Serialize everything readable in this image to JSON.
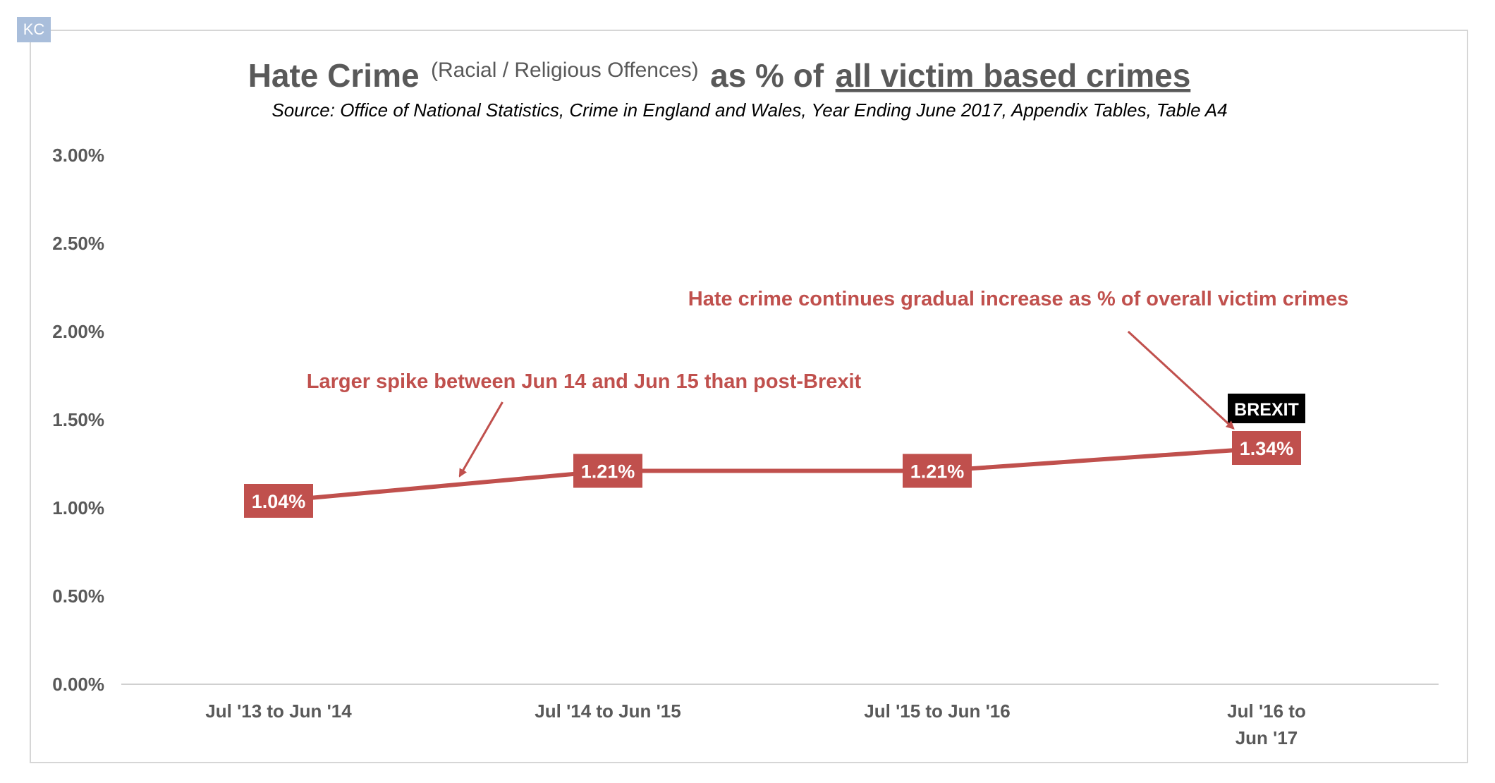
{
  "watermark": "KC",
  "chart_data": {
    "type": "line",
    "title_main": "Hate Crime",
    "title_paren": "(Racial / Religious Offences)",
    "title_mid": "as % of",
    "title_underlined": "all victim based crimes",
    "subtitle": "Source: Office of National Statistics, Crime in England and Wales, Year Ending June 2017, Appendix Tables, Table A4",
    "categories": [
      [
        "Jul '13 to Jun '14"
      ],
      [
        "Jul '14 to Jun '15"
      ],
      [
        "Jul '15 to Jun '16"
      ],
      [
        "Jul '16 to",
        "Jun '17"
      ]
    ],
    "values": [
      1.04,
      1.21,
      1.21,
      1.34
    ],
    "value_labels": [
      "1.04%",
      "1.21%",
      "1.21%",
      "1.34%"
    ],
    "ylim": [
      0,
      3
    ],
    "yticks": [
      "0.00%",
      "0.50%",
      "1.00%",
      "1.50%",
      "2.00%",
      "2.50%",
      "3.00%"
    ],
    "grid": false,
    "line_color": "#c0504d",
    "label_box_color": "#c0504d",
    "brexit_label": "BREXIT",
    "brexit_color": "#000000",
    "annotations": [
      {
        "text": "Larger spike between Jun 14 and Jun 15 than post-Brexit",
        "color": "#c0504d",
        "arrow_from_x": 0.68,
        "arrow_from_value": 1.6,
        "arrow_to_x": 0.55,
        "arrow_to_value": 1.18
      },
      {
        "text": "Hate crime continues gradual increase as % of overall victim crimes",
        "color": "#c0504d",
        "arrow_from_x": 2.58,
        "arrow_from_value": 2.0,
        "arrow_to_x": 2.9,
        "arrow_to_value": 1.45
      }
    ]
  }
}
